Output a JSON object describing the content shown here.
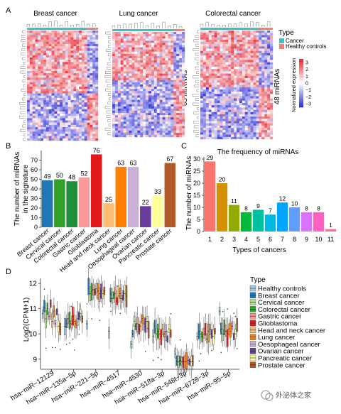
{
  "chart_data": [
    {
      "type": "heatmap",
      "panel": "A",
      "panels": [
        {
          "title": "Breast cancer",
          "label": "49 miRNAs"
        },
        {
          "title": "Lung cancer",
          "label": "63 miRNAs"
        },
        {
          "title": "Colorectal cancer",
          "label": "48 miRNAs"
        }
      ],
      "legend": {
        "title": "Type",
        "entries": [
          {
            "name": "Cancer",
            "color": "#3dbfc5"
          },
          {
            "name": "Healthy controls",
            "color": "#f07d73"
          }
        ]
      },
      "colorbar": {
        "label": "Normalized expression",
        "ticks": [
          "3",
          "2",
          "1",
          "0",
          "−1",
          "−2",
          "−3"
        ],
        "range": [
          -3,
          3
        ],
        "low_color": "#2a2ad8",
        "mid_color": "#ffffff",
        "high_color": "#e8242e"
      }
    },
    {
      "type": "bar",
      "panel": "B",
      "ylabel": "The number of miRNAs\nin the signature",
      "ylim": [
        0,
        80
      ],
      "yticks": [
        0,
        10,
        20,
        30,
        40,
        50,
        60,
        70
      ],
      "categories": [
        "Breast cancer",
        "Cervical cancer",
        "Colorectal cancer",
        "Gastric cancer",
        "Glioblastoma",
        "Head and neck cancer",
        "Lung cancer",
        "Oesophageal cancer",
        "Ovarian cancer",
        "Pancreatic cancer",
        "Prostate cancer"
      ],
      "values": [
        49,
        50,
        48,
        52,
        76,
        25,
        63,
        63,
        22,
        33,
        67
      ],
      "colors": [
        "#1f78b4",
        "#33a02c",
        "#1e8f3a",
        "#fb9a99",
        "#e31a1c",
        "#fdbf6f",
        "#ff7f00",
        "#cab2d6",
        "#6a3d9a",
        "#ffff99",
        "#b15928"
      ]
    },
    {
      "type": "bar",
      "panel": "C",
      "title": "The frequency of miRNAs",
      "xlabel": "Types of cancers",
      "ylabel": "The number of miRNAs",
      "ylim": [
        0,
        30
      ],
      "yticks": [
        0,
        5,
        10,
        15,
        20,
        25,
        30
      ],
      "categories": [
        "1",
        "2",
        "3",
        "4",
        "5",
        "6",
        "7",
        "8",
        "9",
        "10",
        "11"
      ],
      "values": [
        29,
        20,
        11,
        8,
        9,
        7,
        12,
        10,
        8,
        8,
        1
      ],
      "colors": [
        "#f8766d",
        "#d39200",
        "#93aa00",
        "#00ba38",
        "#00c19f",
        "#00b9e3",
        "#00a5ff",
        "#619cff",
        "#db72fb",
        "#ff61c3",
        "#ff6c91"
      ]
    },
    {
      "type": "boxplot",
      "panel": "D",
      "ylabel": "Log2(CPM+1)",
      "ylim": [
        8.6,
        12.2
      ],
      "yticks": [
        9,
        10,
        11,
        12
      ],
      "categories": [
        "hsa−miR−12129",
        "hsa−miR−135a−5p",
        "hsa−miR−221−5p",
        "hsa−miR−4517",
        "hsa−miR−4530",
        "hsa−miR−518a−3p",
        "hsa−miR−548t−3p",
        "hsa−miR−6728−3p",
        "hsa−miR−95−5p"
      ],
      "legend_title": "Type",
      "groups": [
        {
          "name": "Healthy controls",
          "color": "#a6cee3"
        },
        {
          "name": "Breast cancer",
          "color": "#1f78b4"
        },
        {
          "name": "Cervical cancer",
          "color": "#b2df8a"
        },
        {
          "name": "Colorectal cancer",
          "color": "#33a02c"
        },
        {
          "name": "Gastric cancer",
          "color": "#fb9a99"
        },
        {
          "name": "Glioblastoma",
          "color": "#e31a1c"
        },
        {
          "name": "Head and neck cancer",
          "color": "#fdbf6f"
        },
        {
          "name": "Lung cancer",
          "color": "#ff7f00"
        },
        {
          "name": "Oesophageal cancer",
          "color": "#cab2d6"
        },
        {
          "name": "Ovarian cancer",
          "color": "#6a3d9a"
        },
        {
          "name": "Pancreatic cancer",
          "color": "#ffff99"
        },
        {
          "name": "Prostate cancer",
          "color": "#b15928"
        }
      ],
      "medians": [
        [
          10.8,
          11.05,
          10.6,
          11.0,
          10.7,
          11.2,
          10.5,
          10.9,
          10.4,
          10.9,
          10.3,
          10.2
        ],
        [
          10.3,
          10.4,
          10.6,
          10.5,
          10.4,
          10.7,
          10.5,
          10.4,
          10.6,
          10.7,
          10.8,
          10.6
        ],
        [
          10.4,
          11.8,
          11.6,
          11.7,
          11.75,
          11.65,
          11.8,
          11.7,
          11.6,
          11.7,
          11.6,
          11.7
        ],
        [
          10.1,
          11.6,
          11.4,
          11.55,
          11.6,
          11.3,
          11.5,
          11.6,
          11.4,
          11.5,
          11.6,
          11.5
        ],
        [
          9.6,
          10.0,
          10.5,
          10.3,
          10.4,
          10.2,
          10.3,
          10.6,
          10.4,
          10.3,
          10.5,
          10.2
        ],
        [
          9.9,
          10.3,
          10.0,
          10.1,
          10.0,
          9.9,
          10.2,
          10.0,
          10.1,
          9.8,
          10.2,
          10.0
        ],
        [
          9.2,
          8.9,
          8.9,
          8.95,
          8.9,
          8.9,
          8.9,
          8.9,
          8.95,
          8.9,
          8.9,
          8.9
        ],
        [
          9.9,
          10.1,
          10.0,
          9.9,
          10.0,
          10.2,
          9.8,
          10.1,
          10.2,
          10.0,
          9.9,
          10.1
        ],
        [
          10.9,
          10.2,
          10.0,
          10.3,
          10.1,
          9.8,
          10.2,
          10.1,
          10.3,
          9.9,
          10.0,
          10.4
        ]
      ]
    }
  ],
  "page": {
    "panel_labels": [
      "A",
      "B",
      "C",
      "D"
    ],
    "watermark": "外泌体之家"
  }
}
